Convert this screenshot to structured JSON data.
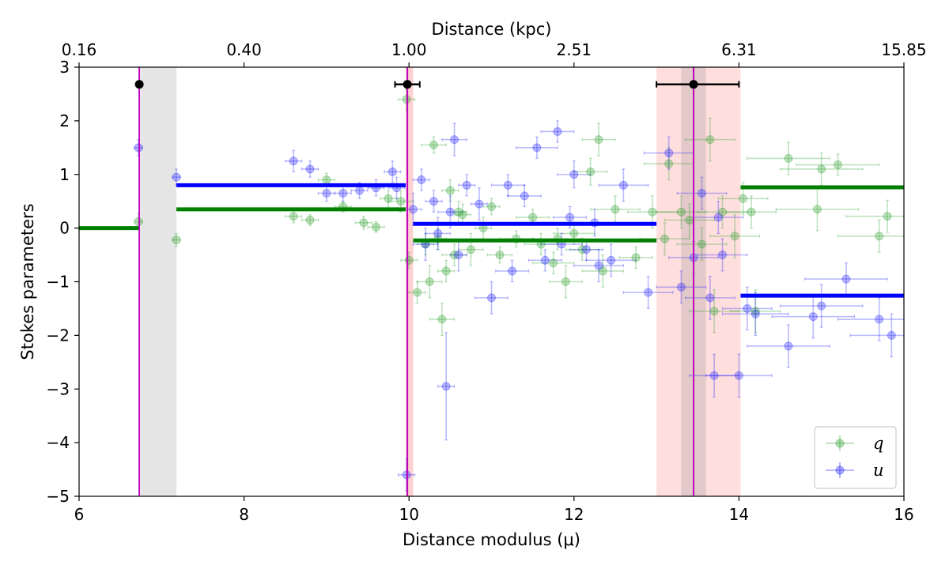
{
  "chart_data": {
    "type": "scatter",
    "xlabel": "Distance modulus (μ)",
    "ylabel": "Stokes parameters",
    "top_xlabel": "Distance (kpc)",
    "xlim": [
      6,
      16
    ],
    "ylim": [
      -5,
      3
    ],
    "x_ticks": [
      6,
      8,
      10,
      12,
      14,
      16
    ],
    "y_ticks": [
      -5,
      -4,
      -3,
      -2,
      -1,
      0,
      1,
      2,
      3
    ],
    "x_tick_labels": [
      "6",
      "8",
      "10",
      "12",
      "14",
      "16"
    ],
    "y_tick_labels": [
      "−5",
      "−4",
      "−3",
      "−2",
      "−1",
      "0",
      "1",
      "2",
      "3"
    ],
    "top_ticks": [
      6,
      8,
      10,
      12,
      14,
      16
    ],
    "top_tick_labels": [
      "0.16",
      "0.40",
      "1.00",
      "2.51",
      "6.31",
      "15.85"
    ],
    "legend": [
      {
        "label": "q",
        "color": "#2ca02c"
      },
      {
        "label": "u",
        "color": "#1f1fff"
      }
    ],
    "colors": {
      "q": "#008000",
      "u": "#0000ff",
      "cloud": "#bf00bf",
      "marker": "#000000"
    },
    "clouds": [
      {
        "mu": 6.73,
        "band_lo": 6.75,
        "band_hi": 7.18,
        "band_color": "#d3d3d3",
        "marker_err": [
          0,
          0
        ]
      },
      {
        "mu": 9.98,
        "band_lo": 9.96,
        "band_hi": 10.05,
        "band_color": "#ffb0b0",
        "marker_err": [
          0.15,
          0.15
        ]
      },
      {
        "mu": 13.45,
        "band_lo": 13.0,
        "band_hi": 14.02,
        "band_color": "#ffc8c8",
        "marker_err": [
          0.45,
          0.55
        ],
        "inner_lo": 13.3,
        "inner_hi": 13.6
      }
    ],
    "marker_y": 2.68,
    "segments": {
      "q": [
        {
          "x0": 6.0,
          "x1": 6.73,
          "y": 0.0
        },
        {
          "x0": 7.18,
          "x1": 9.96,
          "y": 0.35
        },
        {
          "x0": 10.05,
          "x1": 13.0,
          "y": -0.23
        },
        {
          "x0": 14.02,
          "x1": 16.0,
          "y": 0.76
        }
      ],
      "u": [
        {
          "x0": 7.18,
          "x1": 9.96,
          "y": 0.8
        },
        {
          "x0": 10.05,
          "x1": 13.0,
          "y": 0.08
        },
        {
          "x0": 14.02,
          "x1": 16.0,
          "y": -1.26
        }
      ]
    },
    "series": [
      {
        "name": "q",
        "points": [
          [
            6.72,
            0.12,
            0.05,
            0.15
          ],
          [
            7.18,
            -0.22,
            0.05,
            0.12
          ],
          [
            8.6,
            0.22,
            0.1,
            0.12
          ],
          [
            8.8,
            0.15,
            0.1,
            0.1
          ],
          [
            9.0,
            0.9,
            0.1,
            0.12
          ],
          [
            9.2,
            0.4,
            0.1,
            0.1
          ],
          [
            9.45,
            0.1,
            0.1,
            0.12
          ],
          [
            9.6,
            0.02,
            0.1,
            0.1
          ],
          [
            9.75,
            0.55,
            0.1,
            0.15
          ],
          [
            9.9,
            0.5,
            0.15,
            0.2
          ],
          [
            9.97,
            2.4,
            0.1,
            0.2
          ],
          [
            10.0,
            -0.6,
            0.1,
            0.15
          ],
          [
            10.1,
            -1.2,
            0.1,
            0.2
          ],
          [
            10.2,
            -0.3,
            0.1,
            0.2
          ],
          [
            10.25,
            -1.0,
            0.15,
            0.3
          ],
          [
            10.3,
            1.55,
            0.15,
            0.15
          ],
          [
            10.35,
            -0.2,
            0.1,
            0.2
          ],
          [
            10.4,
            -1.7,
            0.15,
            0.3
          ],
          [
            10.45,
            -0.8,
            0.1,
            0.2
          ],
          [
            10.5,
            0.7,
            0.1,
            0.2
          ],
          [
            10.55,
            -0.5,
            0.15,
            0.2
          ],
          [
            10.6,
            0.3,
            0.1,
            0.2
          ],
          [
            10.65,
            0.25,
            0.1,
            0.2
          ],
          [
            10.75,
            -0.4,
            0.15,
            0.3
          ],
          [
            10.9,
            0.0,
            0.1,
            0.2
          ],
          [
            11.0,
            0.4,
            0.1,
            0.15
          ],
          [
            11.1,
            -0.5,
            0.15,
            0.15
          ],
          [
            11.3,
            -0.2,
            0.2,
            0.15
          ],
          [
            11.5,
            0.2,
            0.2,
            0.15
          ],
          [
            11.6,
            -0.3,
            0.2,
            0.2
          ],
          [
            11.75,
            -0.65,
            0.25,
            0.2
          ],
          [
            11.8,
            -0.2,
            0.3,
            0.2
          ],
          [
            11.9,
            -1.0,
            0.2,
            0.3
          ],
          [
            12.0,
            -0.1,
            0.25,
            0.2
          ],
          [
            12.1,
            -0.4,
            0.2,
            0.2
          ],
          [
            12.2,
            1.05,
            0.2,
            0.25
          ],
          [
            12.3,
            1.65,
            0.2,
            0.3
          ],
          [
            12.35,
            -0.8,
            0.25,
            0.3
          ],
          [
            12.5,
            0.35,
            0.3,
            0.25
          ],
          [
            12.75,
            -0.55,
            0.2,
            0.2
          ],
          [
            12.95,
            0.3,
            0.3,
            0.3
          ],
          [
            13.1,
            -0.2,
            0.3,
            0.3
          ],
          [
            13.15,
            1.2,
            0.3,
            0.3
          ],
          [
            13.3,
            0.3,
            0.3,
            0.3
          ],
          [
            13.4,
            0.15,
            0.3,
            0.3
          ],
          [
            13.55,
            -0.3,
            0.3,
            0.3
          ],
          [
            13.65,
            1.65,
            0.3,
            0.4
          ],
          [
            13.7,
            -1.55,
            0.3,
            0.4
          ],
          [
            13.8,
            0.3,
            0.3,
            0.3
          ],
          [
            13.95,
            -0.15,
            0.3,
            0.4
          ],
          [
            14.05,
            0.55,
            0.3,
            0.3
          ],
          [
            14.15,
            0.3,
            0.3,
            0.3
          ],
          [
            14.2,
            -1.55,
            0.3,
            0.4
          ],
          [
            14.6,
            1.3,
            0.5,
            0.3
          ],
          [
            14.95,
            0.35,
            0.5,
            0.4
          ],
          [
            15.0,
            1.1,
            0.5,
            0.3
          ],
          [
            15.2,
            1.18,
            0.5,
            0.2
          ],
          [
            15.7,
            -0.15,
            0.5,
            0.3
          ],
          [
            15.8,
            0.22,
            0.5,
            0.3
          ]
        ]
      },
      {
        "name": "u",
        "points": [
          [
            6.72,
            1.5,
            0.05,
            0.15
          ],
          [
            7.18,
            0.95,
            0.05,
            0.15
          ],
          [
            8.6,
            1.25,
            0.1,
            0.2
          ],
          [
            8.8,
            1.1,
            0.1,
            0.15
          ],
          [
            9.0,
            0.65,
            0.1,
            0.15
          ],
          [
            9.2,
            0.65,
            0.1,
            0.15
          ],
          [
            9.4,
            0.7,
            0.1,
            0.15
          ],
          [
            9.6,
            0.75,
            0.1,
            0.15
          ],
          [
            9.8,
            1.05,
            0.1,
            0.2
          ],
          [
            9.85,
            0.75,
            0.1,
            0.2
          ],
          [
            9.97,
            -4.6,
            0.1,
            0.3
          ],
          [
            10.05,
            0.35,
            0.1,
            0.3
          ],
          [
            10.15,
            0.9,
            0.1,
            0.2
          ],
          [
            10.2,
            -0.3,
            0.15,
            0.3
          ],
          [
            10.3,
            0.5,
            0.1,
            0.2
          ],
          [
            10.35,
            -0.1,
            0.15,
            0.3
          ],
          [
            10.45,
            -2.95,
            0.1,
            1.0
          ],
          [
            10.5,
            0.3,
            0.15,
            0.3
          ],
          [
            10.55,
            1.65,
            0.15,
            0.3
          ],
          [
            10.6,
            -0.5,
            0.1,
            0.3
          ],
          [
            10.7,
            0.8,
            0.1,
            0.2
          ],
          [
            10.85,
            0.45,
            0.1,
            0.3
          ],
          [
            11.0,
            -1.3,
            0.2,
            0.3
          ],
          [
            11.2,
            0.8,
            0.2,
            0.2
          ],
          [
            11.25,
            -0.8,
            0.2,
            0.2
          ],
          [
            11.4,
            0.6,
            0.2,
            0.2
          ],
          [
            11.55,
            1.5,
            0.25,
            0.2
          ],
          [
            11.65,
            -0.6,
            0.2,
            0.2
          ],
          [
            11.8,
            1.8,
            0.2,
            0.2
          ],
          [
            11.85,
            -0.3,
            0.25,
            0.2
          ],
          [
            11.95,
            0.2,
            0.2,
            0.2
          ],
          [
            12.0,
            1.0,
            0.2,
            0.25
          ],
          [
            12.15,
            -0.4,
            0.2,
            0.2
          ],
          [
            12.25,
            0.1,
            0.25,
            0.25
          ],
          [
            12.3,
            -0.7,
            0.3,
            0.3
          ],
          [
            12.45,
            -0.6,
            0.3,
            0.3
          ],
          [
            12.6,
            0.8,
            0.3,
            0.3
          ],
          [
            12.9,
            -1.2,
            0.3,
            0.3
          ],
          [
            13.15,
            1.4,
            0.3,
            0.3
          ],
          [
            13.3,
            -1.1,
            0.3,
            0.3
          ],
          [
            13.45,
            -0.55,
            0.3,
            0.3
          ],
          [
            13.55,
            0.65,
            0.3,
            0.3
          ],
          [
            13.65,
            -1.3,
            0.3,
            0.4
          ],
          [
            13.7,
            -2.75,
            0.3,
            0.4
          ],
          [
            13.75,
            0.2,
            0.3,
            0.3
          ],
          [
            13.8,
            -0.5,
            0.3,
            0.3
          ],
          [
            14.0,
            -2.75,
            0.4,
            0.4
          ],
          [
            14.1,
            -1.5,
            0.3,
            0.4
          ],
          [
            14.2,
            -1.6,
            0.4,
            0.4
          ],
          [
            14.6,
            -2.2,
            0.5,
            0.4
          ],
          [
            14.9,
            -1.65,
            0.5,
            0.4
          ],
          [
            15.0,
            -1.45,
            0.5,
            0.4
          ],
          [
            15.3,
            -0.95,
            0.5,
            0.3
          ],
          [
            15.7,
            -1.7,
            0.5,
            0.4
          ],
          [
            15.85,
            -2.0,
            0.5,
            0.4
          ]
        ]
      }
    ]
  }
}
